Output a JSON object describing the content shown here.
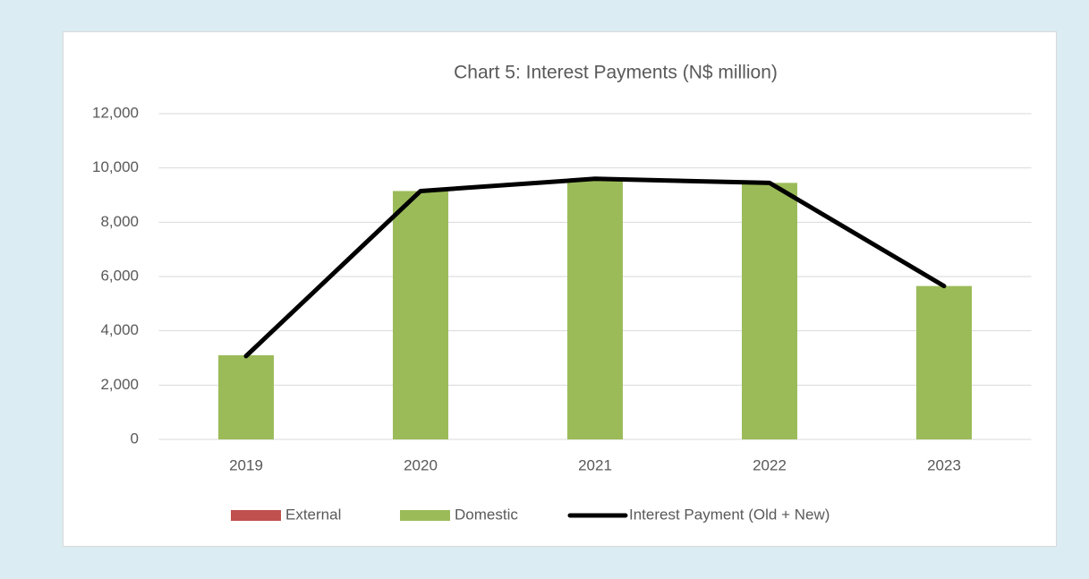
{
  "chart_data": {
    "type": "bar",
    "stacked": true,
    "title": "Chart 5: Interest Payments (N$ million)",
    "categories": [
      "2019",
      "2020",
      "2021",
      "2022",
      "2023"
    ],
    "series": [
      {
        "name": "External",
        "color": "#c0504d",
        "values": [
          0,
          0,
          0,
          0,
          0
        ]
      },
      {
        "name": "Domestic",
        "color": "#9bbb59",
        "values": [
          3100,
          9150,
          9600,
          9450,
          5650
        ]
      },
      {
        "name": "Interest Payment (Old + New)",
        "type": "line",
        "color": "#000000",
        "values": [
          3070,
          9150,
          9600,
          9450,
          5650
        ]
      }
    ],
    "ylim": [
      0,
      12000
    ],
    "yticks": [
      0,
      {
        "value": 2000,
        "label": "2,000"
      },
      {
        "value": 4000,
        "label": "4,000"
      },
      {
        "value": 6000,
        "label": "6,000"
      },
      {
        "value": 8000,
        "label": "8,000"
      },
      {
        "value": 10000,
        "label": "10,000"
      },
      {
        "value": 12000,
        "label": "12,000"
      }
    ],
    "grid": true,
    "legend": "bottom"
  }
}
